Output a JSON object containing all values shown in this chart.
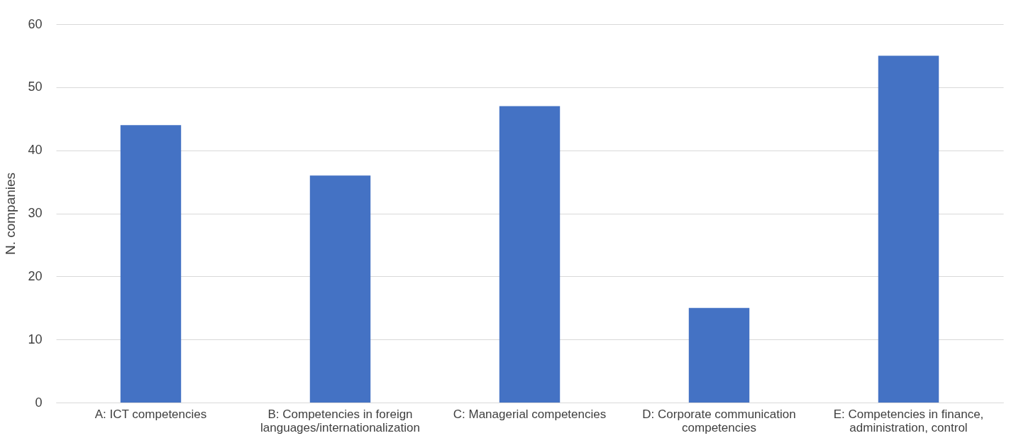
{
  "chart_data": {
    "type": "bar",
    "ylabel": "N. companies",
    "categories": [
      "A: ICT competencies",
      "B: Competencies in foreign languages/internationalization",
      "C: Managerial competencies",
      "D: Corporate communication competencies",
      "E: Competencies in finance, administration, control"
    ],
    "values": [
      44,
      36,
      47,
      15,
      55
    ],
    "color": "#4472c4",
    "ylim": [
      0,
      60
    ],
    "yticks": [
      0,
      10,
      20,
      30,
      40,
      50,
      60
    ],
    "grid": "y"
  }
}
